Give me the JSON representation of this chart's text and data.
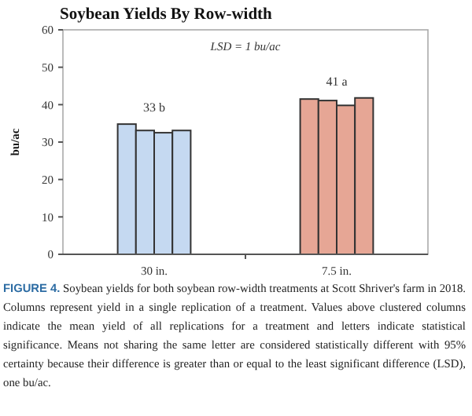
{
  "chart_data": {
    "type": "bar",
    "title": "Soybean Yields By Row-width",
    "ylabel": "bu/ac",
    "categories": [
      "30 in.",
      "7.5 in."
    ],
    "series": [
      {
        "colors": [
          "#c5d9f1",
          "#e6a695"
        ],
        "values": [
          34.8,
          41.5
        ]
      },
      {
        "colors": [
          "#c5d9f1",
          "#e6a695"
        ],
        "values": [
          33.1,
          41.1
        ]
      },
      {
        "colors": [
          "#c5d9f1",
          "#e6a695"
        ],
        "values": [
          32.5,
          39.8
        ]
      },
      {
        "colors": [
          "#c5d9f1",
          "#e6a695"
        ],
        "values": [
          33.1,
          41.8
        ]
      }
    ],
    "ylim": [
      0,
      60
    ],
    "yticks": [
      0,
      10,
      20,
      30,
      40,
      50,
      60
    ],
    "grid": false,
    "annotations": [
      "LSD = 1 bu/ac",
      "33 b",
      "41 a",
      "FIGURE 4. Soybean yields for both soybean row-width treatments at Scott Shriver's farm in 2018. Columns represent yield in a single replication of a treatment. Values above clustered columns indicate the mean yield of all replications for a treatment and letters indicate statistical significance. Means not sharing the same letter are considered statistically different with 95% certainty because their difference is greater than or equal to the least significant difference (LSD), one bu/ac."
    ]
  }
}
